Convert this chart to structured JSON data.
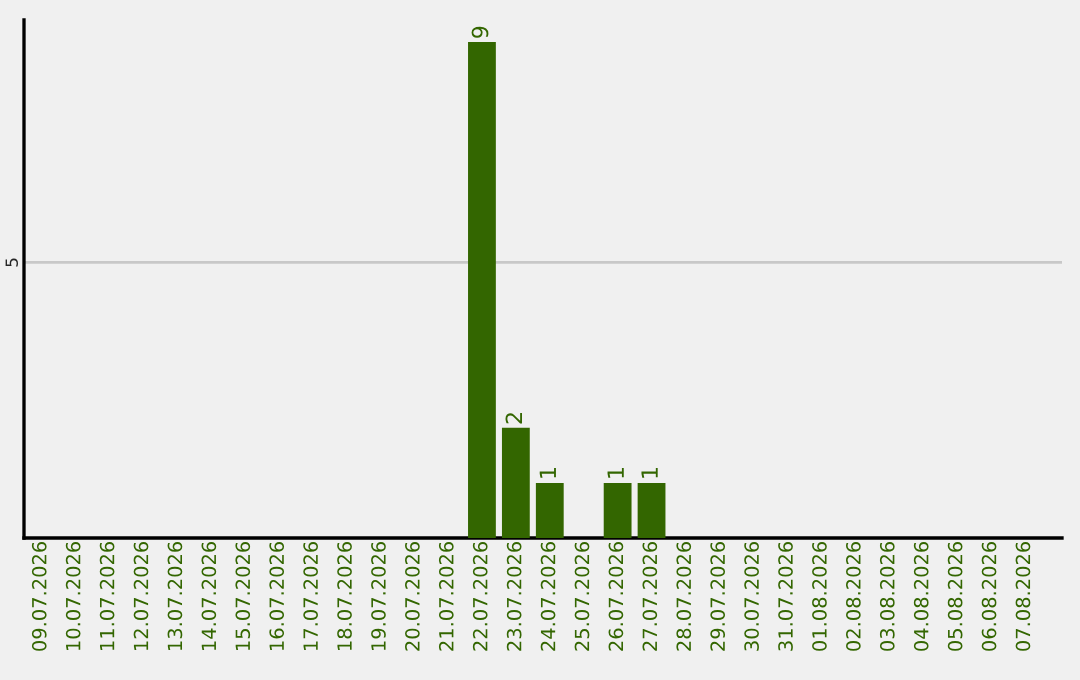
{
  "chart_data": {
    "type": "bar",
    "categories": [
      "09.07.2026",
      "10.07.2026",
      "11.07.2026",
      "12.07.2026",
      "13.07.2026",
      "14.07.2026",
      "15.07.2026",
      "16.07.2026",
      "17.07.2026",
      "18.07.2026",
      "19.07.2026",
      "20.07.2026",
      "21.07.2026",
      "22.07.2026",
      "23.07.2026",
      "24.07.2026",
      "25.07.2026",
      "26.07.2026",
      "27.07.2026",
      "28.07.2026",
      "29.07.2026",
      "30.07.2026",
      "31.07.2026",
      "01.08.2026",
      "02.08.2026",
      "03.08.2026",
      "04.08.2026",
      "05.08.2026",
      "06.08.2026",
      "07.08.2026"
    ],
    "values": [
      null,
      null,
      null,
      null,
      null,
      null,
      null,
      null,
      null,
      null,
      null,
      null,
      null,
      9,
      2,
      1,
      null,
      1,
      1,
      null,
      null,
      null,
      null,
      null,
      null,
      null,
      null,
      null,
      null,
      null
    ],
    "ylim": [
      0,
      9.4
    ],
    "value_labels": [
      null,
      null,
      null,
      null,
      null,
      null,
      null,
      null,
      null,
      null,
      null,
      null,
      null,
      "9",
      "2",
      "1",
      null,
      "1",
      "1",
      null,
      null,
      null,
      null,
      null,
      null,
      null,
      null,
      null,
      null,
      null
    ],
    "color": "#336600",
    "ref_lines": [
      {
        "axis": "y",
        "value": 5,
        "label": "5",
        "color": "#c8c8c8"
      }
    ]
  }
}
